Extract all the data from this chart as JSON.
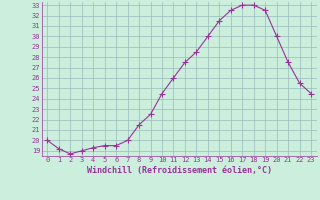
{
  "x": [
    0,
    1,
    2,
    3,
    4,
    5,
    6,
    7,
    8,
    9,
    10,
    11,
    12,
    13,
    14,
    15,
    16,
    17,
    18,
    19,
    20,
    21,
    22,
    23
  ],
  "y": [
    20.0,
    19.2,
    18.7,
    19.0,
    19.3,
    19.5,
    19.5,
    20.0,
    21.5,
    22.5,
    24.5,
    26.0,
    27.5,
    28.5,
    30.0,
    31.5,
    32.5,
    33.0,
    33.0,
    32.5,
    30.0,
    27.5,
    25.5,
    24.5
  ],
  "xlim": [
    -0.5,
    23.5
  ],
  "ylim": [
    18.5,
    33.3
  ],
  "yticks": [
    19,
    20,
    21,
    22,
    23,
    24,
    25,
    26,
    27,
    28,
    29,
    30,
    31,
    32,
    33
  ],
  "xticks": [
    0,
    1,
    2,
    3,
    4,
    5,
    6,
    7,
    8,
    9,
    10,
    11,
    12,
    13,
    14,
    15,
    16,
    17,
    18,
    19,
    20,
    21,
    22,
    23
  ],
  "xlabel": "Windchill (Refroidissement éolien,°C)",
  "line_color": "#993399",
  "marker": "+",
  "bg_color": "#cceedd",
  "grid_color": "#99bbbb",
  "tick_color": "#993399",
  "xlabel_color": "#993399",
  "spine_color": "#993399",
  "tick_fontsize": 5.0,
  "xlabel_fontsize": 6.0,
  "marker_size": 4,
  "linewidth": 0.8
}
